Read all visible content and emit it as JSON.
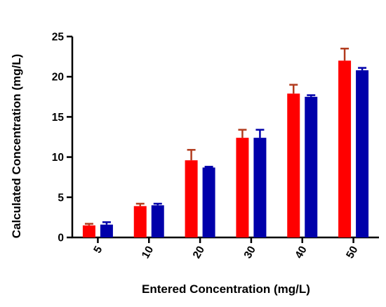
{
  "chart_data": {
    "type": "bar",
    "title": "",
    "xlabel": "Entered Concentration (mg/L)",
    "ylabel": "Calculated Concentration (mg/L)",
    "ylim": [
      0,
      25
    ],
    "yticks": [
      0,
      5,
      10,
      15,
      20,
      25
    ],
    "categories": [
      "5",
      "10",
      "20",
      "30",
      "40",
      "50"
    ],
    "series": [
      {
        "color": "#ff0000",
        "error_color": "#b23c1e",
        "values": [
          1.5,
          3.9,
          9.6,
          12.4,
          17.9,
          22.0
        ],
        "errors": [
          0.2,
          0.3,
          1.3,
          1.0,
          1.1,
          1.5
        ]
      },
      {
        "color": "#0000aa",
        "error_color": "#0000aa",
        "values": [
          1.6,
          4.0,
          8.7,
          12.4,
          17.5,
          20.8
        ],
        "errors": [
          0.3,
          0.2,
          0.1,
          1.0,
          0.2,
          0.3
        ]
      }
    ],
    "legend": "none",
    "grid": false
  }
}
